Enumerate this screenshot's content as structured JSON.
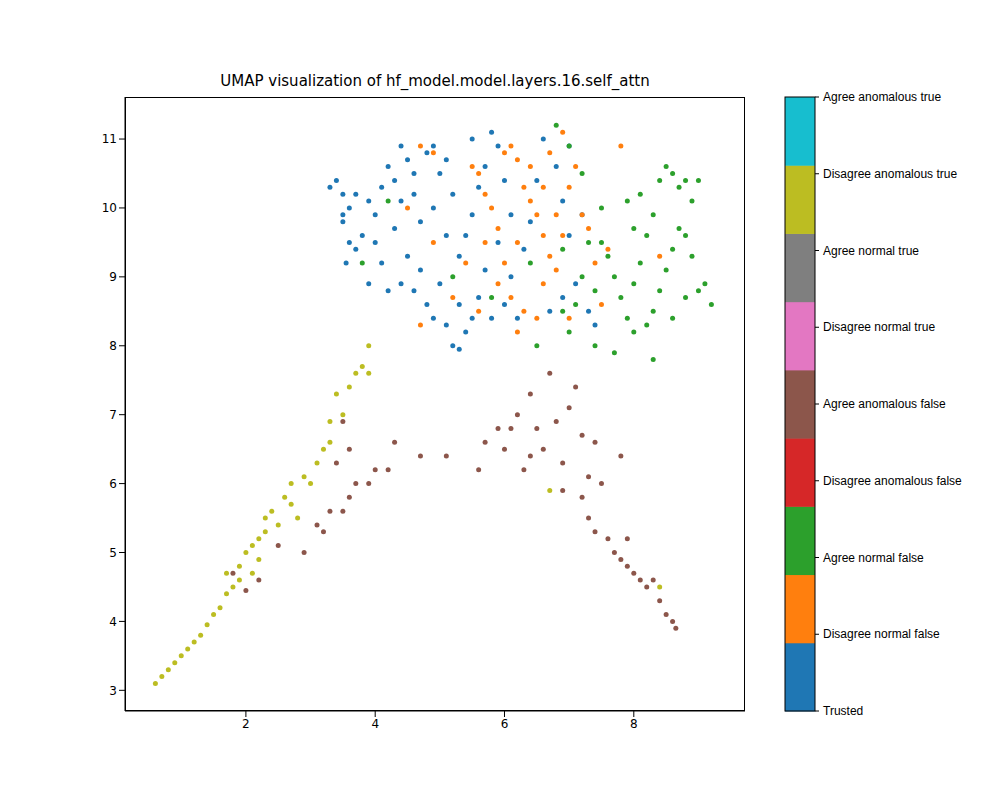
{
  "chart_data": {
    "type": "scatter",
    "title": "UMAP visualization of hf_model.model.layers.16.self_attn",
    "xlim": [
      0.13,
      9.72
    ],
    "ylim": [
      2.7,
      11.61
    ],
    "xticks": [
      2,
      4,
      6,
      8
    ],
    "yticks": [
      3,
      4,
      5,
      6,
      7,
      8,
      9,
      10,
      11
    ],
    "grid": false,
    "marker": "o",
    "series": [
      {
        "name": "Trusted",
        "color": "#1f77b4",
        "x": [
          3.3,
          3.4,
          3.5,
          3.6,
          3.5,
          3.7,
          3.8,
          3.6,
          3.9,
          4.0,
          4.1,
          4.2,
          4.3,
          4.4,
          4.5,
          4.6,
          4.8,
          4.9,
          5.0,
          5.1,
          5.2,
          4.3,
          4.5,
          4.4,
          4.6,
          4.7,
          4.8,
          4.9,
          5.0,
          5.1,
          5.2,
          5.3,
          5.4,
          5.5,
          5.6,
          5.3,
          5.4,
          5.5,
          5.6,
          5.7,
          5.8,
          5.9,
          6.0,
          5.9,
          5.7,
          6.1,
          6.0,
          6.2,
          6.3,
          6.4,
          6.5,
          6.6,
          6.8,
          6.9,
          7.0,
          7.1,
          7.3,
          7.4,
          7.2,
          7.0,
          3.9,
          4.1,
          4.2,
          4.0,
          4.7,
          4.9,
          5.1,
          5.3,
          4.6,
          3.7,
          5.8,
          6.1,
          4.4,
          5.5,
          6.7,
          6.9,
          3.55,
          3.5
        ],
        "y": [
          10.3,
          10.4,
          10.2,
          10.0,
          9.8,
          9.4,
          9.6,
          9.5,
          10.1,
          9.9,
          10.3,
          10.6,
          10.4,
          10.1,
          10.7,
          10.5,
          10.8,
          10.9,
          10.5,
          10.7,
          10.2,
          9.7,
          9.3,
          8.9,
          8.8,
          9.1,
          8.6,
          8.4,
          8.9,
          8.3,
          8.0,
          7.95,
          8.2,
          8.4,
          8.7,
          9.3,
          9.6,
          9.9,
          10.3,
          10.6,
          11.1,
          10.9,
          10.4,
          9.5,
          9.1,
          9.0,
          8.6,
          8.4,
          9.4,
          9.8,
          10.4,
          11.0,
          10.6,
          10.1,
          9.6,
          8.9,
          8.5,
          8.3,
          9.9,
          10.9,
          8.9,
          9.2,
          8.8,
          9.5,
          9.8,
          10.0,
          9.6,
          8.6,
          10.2,
          10.2,
          8.4,
          9.9,
          10.9,
          11.0,
          8.5,
          8.7,
          9.2,
          9.9
        ]
      },
      {
        "name": "Disagree normal false",
        "color": "#ff7f0e",
        "x": [
          4.7,
          4.9,
          4.5,
          4.7,
          4.9,
          5.5,
          5.6,
          5.7,
          5.8,
          5.9,
          6.0,
          6.1,
          6.2,
          6.3,
          6.4,
          6.5,
          6.6,
          6.7,
          6.2,
          6.0,
          5.9,
          6.1,
          6.3,
          6.5,
          6.6,
          6.8,
          6.9,
          7.0,
          7.1,
          7.2,
          7.3,
          7.4,
          7.5,
          6.4,
          6.7,
          6.9,
          5.4,
          5.2,
          5.6,
          6.2,
          7.0,
          7.8,
          8.4,
          5.7,
          6.6,
          6.8,
          7.6
        ],
        "y": [
          10.9,
          10.8,
          10.0,
          8.3,
          9.5,
          10.6,
          10.5,
          10.2,
          10.0,
          9.7,
          10.8,
          10.9,
          10.7,
          10.3,
          10.1,
          9.9,
          9.6,
          9.3,
          9.5,
          9.2,
          8.9,
          8.7,
          8.5,
          8.4,
          8.9,
          9.1,
          9.6,
          10.3,
          10.6,
          9.9,
          9.7,
          9.2,
          8.6,
          10.6,
          10.8,
          11.1,
          9.2,
          8.7,
          8.5,
          8.2,
          8.4,
          10.9,
          9.3,
          9.5,
          10.3,
          9.9,
          9.4
        ]
      },
      {
        "name": "Agree normal false",
        "color": "#2ca02c",
        "x": [
          6.8,
          7.0,
          6.9,
          7.2,
          7.4,
          7.5,
          7.6,
          7.7,
          7.8,
          7.9,
          7.7,
          8.0,
          8.1,
          8.2,
          8.3,
          8.1,
          8.0,
          7.9,
          8.4,
          8.5,
          8.6,
          8.7,
          8.8,
          9.0,
          8.9,
          8.7,
          8.6,
          8.5,
          8.4,
          8.3,
          8.2,
          8.3,
          8.6,
          8.8,
          9.0,
          9.2,
          9.1,
          8.9,
          8.8,
          7.3,
          7.1,
          6.9,
          7.0,
          6.5,
          7.4,
          8.0,
          4.2,
          3.8,
          5.2,
          5.8,
          6.4,
          7.5,
          7.2
        ],
        "y": [
          11.2,
          10.9,
          9.4,
          9.0,
          8.8,
          9.5,
          9.3,
          9.0,
          8.7,
          8.4,
          7.9,
          8.9,
          9.2,
          9.6,
          9.9,
          10.2,
          9.7,
          10.1,
          10.4,
          10.6,
          10.5,
          10.3,
          10.4,
          10.4,
          10.1,
          9.7,
          9.4,
          9.1,
          8.8,
          8.5,
          8.3,
          7.8,
          8.4,
          8.7,
          8.8,
          8.6,
          8.9,
          9.3,
          9.6,
          9.5,
          8.6,
          8.5,
          8.2,
          8.0,
          8.0,
          8.2,
          10.1,
          9.2,
          9.0,
          8.7,
          9.2,
          10.0,
          10.5
        ]
      },
      {
        "name": "Disagree anomalous false",
        "color": "#d62728",
        "x": [],
        "y": []
      },
      {
        "name": "Agree anomalous false",
        "color": "#8c564b",
        "x": [
          1.8,
          2.0,
          2.2,
          2.5,
          2.9,
          3.1,
          3.2,
          3.3,
          3.5,
          3.6,
          3.4,
          3.7,
          3.9,
          4.0,
          4.3,
          4.2,
          3.6,
          3.5,
          4.7,
          5.1,
          5.7,
          5.9,
          6.0,
          6.1,
          6.2,
          6.3,
          6.4,
          6.5,
          6.6,
          6.7,
          6.8,
          6.9,
          7.0,
          7.1,
          7.2,
          7.3,
          7.4,
          7.5,
          7.2,
          7.3,
          7.4,
          7.6,
          7.7,
          7.8,
          7.9,
          7.9,
          8.0,
          8.1,
          8.2,
          8.3,
          8.4,
          8.5,
          8.6,
          8.65,
          7.8,
          6.4,
          5.6,
          6.9
        ],
        "y": [
          4.7,
          4.45,
          4.6,
          5.1,
          5.0,
          5.4,
          5.3,
          5.6,
          5.6,
          5.8,
          6.3,
          6.0,
          6.0,
          6.2,
          6.6,
          6.2,
          6.5,
          6.9,
          6.4,
          6.4,
          6.6,
          6.8,
          6.5,
          6.8,
          7.0,
          6.2,
          6.4,
          6.8,
          6.5,
          7.6,
          6.9,
          6.3,
          7.1,
          7.4,
          6.7,
          6.1,
          6.6,
          6.0,
          5.8,
          5.5,
          5.3,
          5.2,
          5.0,
          4.9,
          4.8,
          5.2,
          4.7,
          4.6,
          4.5,
          4.6,
          4.3,
          4.1,
          4.0,
          3.9,
          6.4,
          7.3,
          6.2,
          5.9
        ]
      },
      {
        "name": "Disagree normal true",
        "color": "#e377c2",
        "x": [],
        "y": []
      },
      {
        "name": "Agree normal true",
        "color": "#7f7f7f",
        "x": [],
        "y": []
      },
      {
        "name": "Disagree anomalous true",
        "color": "#bcbd22",
        "x": [
          0.6,
          0.7,
          0.8,
          0.9,
          1.0,
          1.1,
          1.2,
          1.3,
          1.4,
          1.5,
          1.6,
          1.7,
          1.7,
          1.8,
          1.9,
          2.0,
          2.1,
          2.2,
          2.2,
          2.3,
          2.3,
          2.4,
          2.5,
          2.6,
          2.7,
          2.8,
          2.7,
          2.9,
          3.0,
          3.1,
          3.2,
          3.3,
          3.3,
          3.5,
          3.4,
          3.6,
          3.7,
          3.8,
          3.9,
          3.9,
          6.7,
          8.4,
          2.1,
          1.9
        ],
        "y": [
          3.1,
          3.2,
          3.3,
          3.4,
          3.5,
          3.6,
          3.7,
          3.8,
          3.95,
          4.1,
          4.2,
          4.4,
          4.7,
          4.5,
          4.8,
          5.0,
          5.1,
          5.2,
          4.9,
          5.3,
          5.5,
          5.6,
          5.4,
          5.8,
          5.7,
          5.5,
          6.0,
          6.1,
          6.0,
          6.3,
          6.5,
          6.6,
          6.9,
          7.0,
          7.3,
          7.4,
          7.6,
          7.7,
          8.0,
          7.6,
          5.9,
          4.5,
          4.7,
          4.6
        ]
      },
      {
        "name": "Agree anomalous true",
        "color": "#17becf",
        "x": [],
        "y": []
      }
    ]
  }
}
